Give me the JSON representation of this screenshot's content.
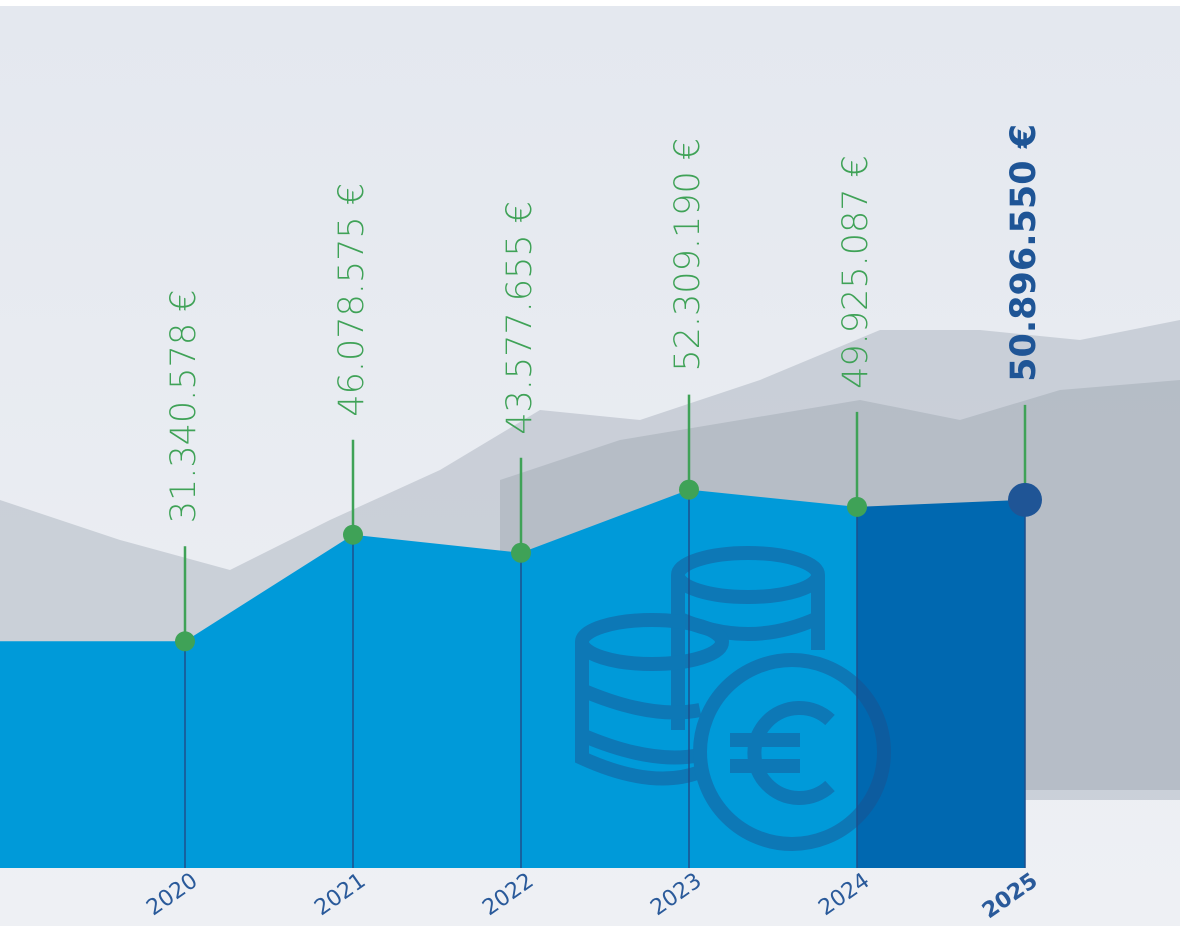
{
  "chart_data": {
    "type": "area",
    "categories": [
      "2020",
      "2021",
      "2022",
      "2023",
      "2024",
      "2025"
    ],
    "values": [
      31340578,
      46078575,
      43577655,
      52309190,
      49925087,
      50896550
    ],
    "value_labels": [
      "31.340.578 €",
      "46.078.575 €",
      "43.577.655 €",
      "52.309.190 €",
      "49.925.087 €",
      "50.896.550 €"
    ],
    "ylim": [
      0,
      120000000
    ],
    "color": "#009ad9",
    "highlight_color": "#0068b0",
    "marker_color": "#3fa257",
    "highlight_marker_color": "#1f5596"
  }
}
